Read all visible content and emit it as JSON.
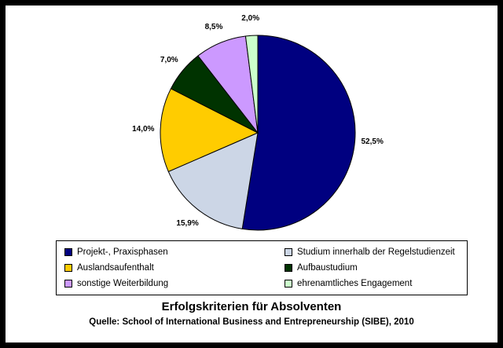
{
  "chart_data": {
    "type": "pie",
    "title": "Erfolgskriterien für Absolventen",
    "subtitle": "Quelle: School of International Business and Entrepreneurship (SIBE), 2010",
    "slices": [
      {
        "label": "Projekt-, Praxisphasen",
        "value": 52.5,
        "value_label": "52,5%",
        "color": "#000080"
      },
      {
        "label": "Studium innerhalb der Regelstudienzeit",
        "value": 15.9,
        "value_label": "15,9%",
        "color": "#CCD6E6"
      },
      {
        "label": "Auslandsaufenthalt",
        "value": 14.0,
        "value_label": "14,0%",
        "color": "#FFCC00"
      },
      {
        "label": "Aufbaustudium",
        "value": 7.0,
        "value_label": "7,0%",
        "color": "#003300"
      },
      {
        "label": "sonstige Weiterbildung",
        "value": 8.5,
        "value_label": "8,5%",
        "color": "#CC99FF"
      },
      {
        "label": "ehrenamtliches Engagement",
        "value": 2.0,
        "value_label": "2,0%",
        "color": "#CCFFCC"
      }
    ],
    "legend_position": "bottom"
  }
}
